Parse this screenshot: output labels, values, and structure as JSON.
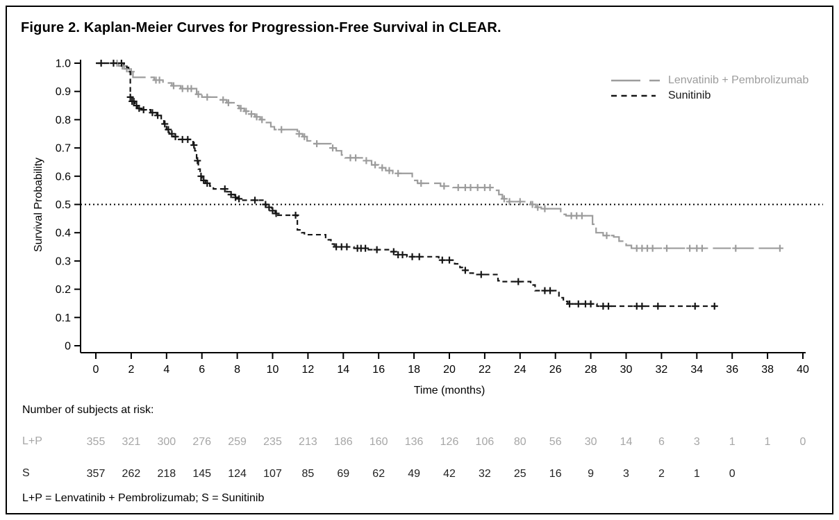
{
  "figure": {
    "title": "Figure 2. Kaplan-Meier Curves for Progression-Free Survival in CLEAR.",
    "footnote": "L+P = Lenvatinib + Pembrolizumab; S = Sunitinib"
  },
  "chart_data": {
    "type": "line",
    "subtype": "kaplan-meier-step",
    "title": "Figure 2. Kaplan-Meier Curves for Progression-Free Survival in CLEAR.",
    "xlabel": "Time (months)",
    "ylabel": "Survival Probability",
    "xlim": [
      0,
      40
    ],
    "ylim": [
      0,
      1
    ],
    "x_ticks": [
      0,
      2,
      4,
      6,
      8,
      10,
      12,
      14,
      16,
      18,
      20,
      22,
      24,
      26,
      28,
      30,
      32,
      34,
      36,
      38,
      40
    ],
    "y_ticks": [
      1.0,
      0.9,
      0.8,
      0.7,
      0.6,
      0.5,
      0.4,
      0.3,
      0.2,
      0.1,
      0
    ],
    "y_tick_labels": [
      "1.0",
      "0.9",
      "0.8",
      "0.7",
      "0.6",
      "0.5",
      "0.4",
      "0.3",
      "0.2",
      "0.1",
      "0"
    ],
    "reference_line_y": 0.5,
    "grid": false,
    "legend_position": "top-right",
    "series": [
      {
        "name": "Lenvatinib + Pembrolizumab",
        "color": "#9c9c9c",
        "line_style": "long-dash",
        "steps": [
          [
            0,
            1.0
          ],
          [
            1.3,
            0.99
          ],
          [
            1.6,
            0.98
          ],
          [
            1.9,
            0.97
          ],
          [
            2.1,
            0.95
          ],
          [
            3.3,
            0.94
          ],
          [
            3.8,
            0.93
          ],
          [
            4.3,
            0.92
          ],
          [
            4.8,
            0.91
          ],
          [
            5.7,
            0.89
          ],
          [
            6.0,
            0.88
          ],
          [
            6.9,
            0.87
          ],
          [
            7.4,
            0.86
          ],
          [
            7.9,
            0.85
          ],
          [
            8.1,
            0.84
          ],
          [
            8.4,
            0.83
          ],
          [
            8.7,
            0.82
          ],
          [
            9.0,
            0.81
          ],
          [
            9.3,
            0.8
          ],
          [
            9.6,
            0.79
          ],
          [
            9.9,
            0.775
          ],
          [
            10.1,
            0.765
          ],
          [
            11.4,
            0.75
          ],
          [
            11.7,
            0.74
          ],
          [
            11.95,
            0.725
          ],
          [
            12.15,
            0.715
          ],
          [
            13.3,
            0.7
          ],
          [
            13.6,
            0.69
          ],
          [
            13.9,
            0.675
          ],
          [
            14.1,
            0.665
          ],
          [
            15.2,
            0.655
          ],
          [
            15.6,
            0.64
          ],
          [
            16.0,
            0.63
          ],
          [
            16.4,
            0.62
          ],
          [
            16.8,
            0.61
          ],
          [
            17.9,
            0.585
          ],
          [
            18.2,
            0.575
          ],
          [
            19.5,
            0.565
          ],
          [
            20.2,
            0.56
          ],
          [
            22.6,
            0.55
          ],
          [
            22.8,
            0.535
          ],
          [
            23.0,
            0.52
          ],
          [
            23.3,
            0.51
          ],
          [
            24.6,
            0.5
          ],
          [
            24.9,
            0.49
          ],
          [
            25.2,
            0.485
          ],
          [
            26.3,
            0.465
          ],
          [
            26.6,
            0.46
          ],
          [
            28.1,
            0.43
          ],
          [
            28.3,
            0.4
          ],
          [
            28.7,
            0.39
          ],
          [
            29.3,
            0.385
          ],
          [
            29.6,
            0.37
          ],
          [
            30.0,
            0.355
          ],
          [
            30.3,
            0.345
          ],
          [
            38.7,
            0.345
          ]
        ],
        "censor_months": [
          1.2,
          1.5,
          1.75,
          2.0,
          3.4,
          3.6,
          4.4,
          4.9,
          5.2,
          5.4,
          5.8,
          6.3,
          7.2,
          7.5,
          8.2,
          8.5,
          8.8,
          9.1,
          9.4,
          10.5,
          11.5,
          11.8,
          12.5,
          13.4,
          14.4,
          14.7,
          15.3,
          15.8,
          16.2,
          16.6,
          17.1,
          18.4,
          19.7,
          20.5,
          20.9,
          21.2,
          21.6,
          22.0,
          22.3,
          23.1,
          23.4,
          24.0,
          24.7,
          25.0,
          25.4,
          26.9,
          27.2,
          27.5,
          28.9,
          30.6,
          30.9,
          31.2,
          31.5,
          32.3,
          33.6,
          34.0,
          34.3,
          36.2,
          38.7
        ]
      },
      {
        "name": "Sunitinib",
        "color": "#161616",
        "line_style": "short-dash",
        "steps": [
          [
            0,
            1.0
          ],
          [
            1.6,
            0.995
          ],
          [
            1.75,
            0.985
          ],
          [
            1.85,
            0.97
          ],
          [
            1.95,
            0.88
          ],
          [
            2.05,
            0.865
          ],
          [
            2.2,
            0.85
          ],
          [
            2.35,
            0.84
          ],
          [
            2.5,
            0.835
          ],
          [
            3.1,
            0.825
          ],
          [
            3.45,
            0.815
          ],
          [
            3.7,
            0.8
          ],
          [
            3.85,
            0.785
          ],
          [
            4.0,
            0.765
          ],
          [
            4.15,
            0.75
          ],
          [
            4.4,
            0.74
          ],
          [
            4.6,
            0.73
          ],
          [
            5.5,
            0.71
          ],
          [
            5.6,
            0.69
          ],
          [
            5.7,
            0.655
          ],
          [
            5.8,
            0.625
          ],
          [
            5.9,
            0.6
          ],
          [
            6.0,
            0.585
          ],
          [
            6.2,
            0.575
          ],
          [
            6.45,
            0.565
          ],
          [
            6.65,
            0.555
          ],
          [
            7.4,
            0.545
          ],
          [
            7.6,
            0.535
          ],
          [
            7.85,
            0.525
          ],
          [
            8.05,
            0.52
          ],
          [
            8.25,
            0.515
          ],
          [
            9.5,
            0.5
          ],
          [
            9.65,
            0.49
          ],
          [
            9.95,
            0.478
          ],
          [
            10.15,
            0.468
          ],
          [
            10.3,
            0.462
          ],
          [
            11.4,
            0.41
          ],
          [
            11.65,
            0.4
          ],
          [
            11.8,
            0.393
          ],
          [
            13.0,
            0.375
          ],
          [
            13.3,
            0.36
          ],
          [
            13.5,
            0.35
          ],
          [
            14.6,
            0.345
          ],
          [
            15.3,
            0.34
          ],
          [
            16.7,
            0.333
          ],
          [
            17.0,
            0.322
          ],
          [
            17.6,
            0.315
          ],
          [
            19.4,
            0.303
          ],
          [
            20.3,
            0.29
          ],
          [
            20.6,
            0.277
          ],
          [
            20.85,
            0.267
          ],
          [
            21.1,
            0.257
          ],
          [
            21.35,
            0.252
          ],
          [
            22.75,
            0.23
          ],
          [
            22.9,
            0.227
          ],
          [
            24.6,
            0.215
          ],
          [
            24.85,
            0.195
          ],
          [
            26.2,
            0.17
          ],
          [
            26.45,
            0.157
          ],
          [
            26.7,
            0.148
          ],
          [
            28.35,
            0.14
          ],
          [
            35.0,
            0.14
          ]
        ],
        "censor_months": [
          0.3,
          1.0,
          1.45,
          1.95,
          2.05,
          2.15,
          2.3,
          2.45,
          2.7,
          3.2,
          3.5,
          3.9,
          4.1,
          4.3,
          4.5,
          4.9,
          5.2,
          5.55,
          5.75,
          5.95,
          6.1,
          6.3,
          7.3,
          7.65,
          7.9,
          8.1,
          9.0,
          9.6,
          9.8,
          10.0,
          10.2,
          11.3,
          13.6,
          13.9,
          14.2,
          14.8,
          15.0,
          15.25,
          15.9,
          16.85,
          17.1,
          17.35,
          17.9,
          18.3,
          19.6,
          20.0,
          20.9,
          21.8,
          23.9,
          25.4,
          25.7,
          26.8,
          27.3,
          27.7,
          28.0,
          28.7,
          29.0,
          30.6,
          30.9,
          31.8,
          33.9,
          35.0
        ]
      }
    ],
    "at_risk": {
      "heading": "Number of subjects at risk:",
      "months": [
        0,
        2,
        4,
        6,
        8,
        10,
        12,
        14,
        16,
        18,
        20,
        22,
        24,
        26,
        28,
        30,
        32,
        34,
        36,
        38,
        40
      ],
      "rows": [
        {
          "label": "L+P",
          "color": "#a6a6a6",
          "values": [
            355,
            321,
            300,
            276,
            259,
            235,
            213,
            186,
            160,
            136,
            126,
            106,
            80,
            56,
            30,
            14,
            6,
            3,
            1,
            1,
            0
          ]
        },
        {
          "label": "S",
          "color": "#222222",
          "values": [
            357,
            262,
            218,
            145,
            124,
            107,
            85,
            69,
            62,
            49,
            42,
            32,
            25,
            16,
            9,
            3,
            2,
            1,
            0
          ]
        }
      ]
    }
  }
}
